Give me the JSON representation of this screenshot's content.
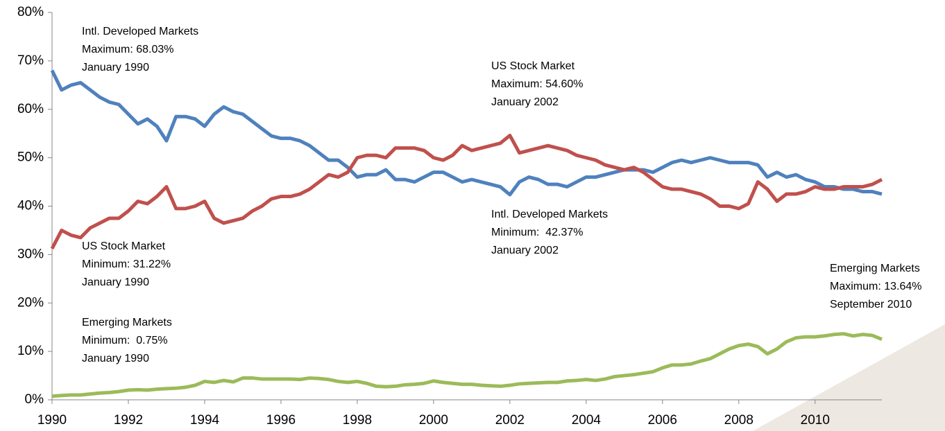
{
  "chart_data": {
    "type": "line",
    "x": [
      1990,
      1990.25,
      1990.5,
      1990.75,
      1991,
      1991.25,
      1991.5,
      1991.75,
      1992,
      1992.25,
      1992.5,
      1992.75,
      1993,
      1993.25,
      1993.5,
      1993.75,
      1994,
      1994.25,
      1994.5,
      1994.75,
      1995,
      1995.25,
      1995.5,
      1995.75,
      1996,
      1996.25,
      1996.5,
      1996.75,
      1997,
      1997.25,
      1997.5,
      1997.75,
      1998,
      1998.25,
      1998.5,
      1998.75,
      1999,
      1999.25,
      1999.5,
      1999.75,
      2000,
      2000.25,
      2000.5,
      2000.75,
      2001,
      2001.25,
      2001.5,
      2001.75,
      2002,
      2002.25,
      2002.5,
      2002.75,
      2003,
      2003.25,
      2003.5,
      2003.75,
      2004,
      2004.25,
      2004.5,
      2004.75,
      2005,
      2005.25,
      2005.5,
      2005.75,
      2006,
      2006.25,
      2006.5,
      2006.75,
      2007,
      2007.25,
      2007.5,
      2007.75,
      2008,
      2008.25,
      2008.5,
      2008.75,
      2009,
      2009.25,
      2009.5,
      2009.75,
      2010,
      2010.25,
      2010.5,
      2010.75,
      2011,
      2011.25,
      2011.5,
      2011.75
    ],
    "series": [
      {
        "name": "Intl. Developed Markets",
        "color": "#4f81bd",
        "values": [
          68.03,
          64,
          65,
          65.5,
          64,
          62.5,
          61.5,
          61,
          59,
          57,
          58,
          56.5,
          53.5,
          58.5,
          58.5,
          58,
          56.5,
          59,
          60.5,
          59.5,
          59,
          57.5,
          56,
          54.5,
          54,
          54,
          53.5,
          52.5,
          51,
          49.5,
          49.5,
          48,
          46,
          46.5,
          46.5,
          47.5,
          45.5,
          45.5,
          45,
          46,
          47,
          47,
          46,
          45,
          45.5,
          45,
          44.5,
          44,
          42.37,
          45,
          46,
          45.5,
          44.5,
          44.5,
          44,
          45,
          46,
          46,
          46.5,
          47,
          47.5,
          47.5,
          47.5,
          47,
          48,
          49,
          49.5,
          49,
          49.5,
          50,
          49.5,
          49,
          49,
          49,
          48.5,
          46,
          47,
          46,
          46.5,
          45.5,
          45,
          44,
          44,
          43.5,
          43.5,
          43,
          43,
          42.5
        ]
      },
      {
        "name": "US Stock Market",
        "color": "#c0504d",
        "values": [
          31.22,
          35,
          34,
          33.5,
          35.5,
          36.5,
          37.5,
          37.5,
          39,
          41,
          40.5,
          42,
          44,
          39.5,
          39.5,
          40,
          41,
          37.5,
          36.5,
          37,
          37.5,
          39,
          40,
          41.5,
          42,
          42,
          42.5,
          43.5,
          45,
          46.5,
          46,
          47,
          50,
          50.5,
          50.5,
          50,
          52,
          52,
          52,
          51.5,
          50,
          49.5,
          50.5,
          52.5,
          51.5,
          52,
          52.5,
          53,
          54.6,
          51,
          51.5,
          52,
          52.5,
          52,
          51.5,
          50.5,
          50,
          49.5,
          48.5,
          48,
          47.5,
          48,
          47,
          45.5,
          44,
          43.5,
          43.5,
          43,
          42.5,
          41.5,
          40,
          40,
          39.5,
          40.5,
          45,
          43.5,
          41,
          42.5,
          42.5,
          43,
          44,
          43.5,
          43.5,
          44,
          44,
          44,
          44.5,
          45.5
        ]
      },
      {
        "name": "Emerging Markets",
        "color": "#9bbb59",
        "values": [
          0.75,
          0.9,
          1.0,
          1.0,
          1.2,
          1.4,
          1.5,
          1.7,
          2.0,
          2.1,
          2.0,
          2.2,
          2.3,
          2.4,
          2.6,
          3.0,
          3.8,
          3.6,
          4.0,
          3.7,
          4.5,
          4.5,
          4.3,
          4.3,
          4.3,
          4.3,
          4.2,
          4.5,
          4.4,
          4.2,
          3.8,
          3.6,
          3.8,
          3.4,
          2.8,
          2.7,
          2.8,
          3.1,
          3.2,
          3.4,
          3.9,
          3.6,
          3.4,
          3.2,
          3.2,
          3.0,
          2.9,
          2.8,
          3.0,
          3.3,
          3.4,
          3.5,
          3.6,
          3.6,
          3.9,
          4.0,
          4.2,
          4.0,
          4.3,
          4.8,
          5.0,
          5.2,
          5.5,
          5.8,
          6.6,
          7.2,
          7.2,
          7.4,
          8.0,
          8.5,
          9.5,
          10.5,
          11.2,
          11.5,
          11.0,
          9.5,
          10.5,
          12.0,
          12.8,
          13.0,
          13.0,
          13.2,
          13.5,
          13.64,
          13.2,
          13.5,
          13.3,
          12.5
        ]
      }
    ],
    "xlim": [
      1990,
      2011.75
    ],
    "xticks": [
      1990,
      1992,
      1994,
      1996,
      1998,
      2000,
      2002,
      2004,
      2006,
      2008,
      2010
    ],
    "ylim": [
      0,
      80
    ],
    "yticks": [
      {
        "value": 0,
        "label": "0%"
      },
      {
        "value": 10,
        "label": "10%"
      },
      {
        "value": 20,
        "label": "20%"
      },
      {
        "value": 30,
        "label": "30%"
      },
      {
        "value": 40,
        "label": "40%"
      },
      {
        "value": 50,
        "label": "50%"
      },
      {
        "value": 60,
        "label": "60%"
      },
      {
        "value": 70,
        "label": "70%"
      },
      {
        "value": 80,
        "label": "80%"
      }
    ],
    "annotations": [
      {
        "lines": [
          "Intl. Developed Markets",
          "Maximum: 68.03%",
          "January 1990"
        ]
      },
      {
        "lines": [
          "US Stock Market",
          "Maximum: 54.60%",
          "January 2002"
        ]
      },
      {
        "lines": [
          "Intl. Developed Markets",
          "Minimum:  42.37%",
          "January 2002"
        ]
      },
      {
        "lines": [
          "US Stock Market",
          "Minimum: 31.22%",
          "January 1990"
        ]
      },
      {
        "lines": [
          "Emerging Markets",
          "Maximum: 13.64%",
          "September 2010"
        ]
      },
      {
        "lines": [
          "Emerging Markets",
          "Minimum:  0.75%",
          "January 1990"
        ]
      }
    ]
  }
}
